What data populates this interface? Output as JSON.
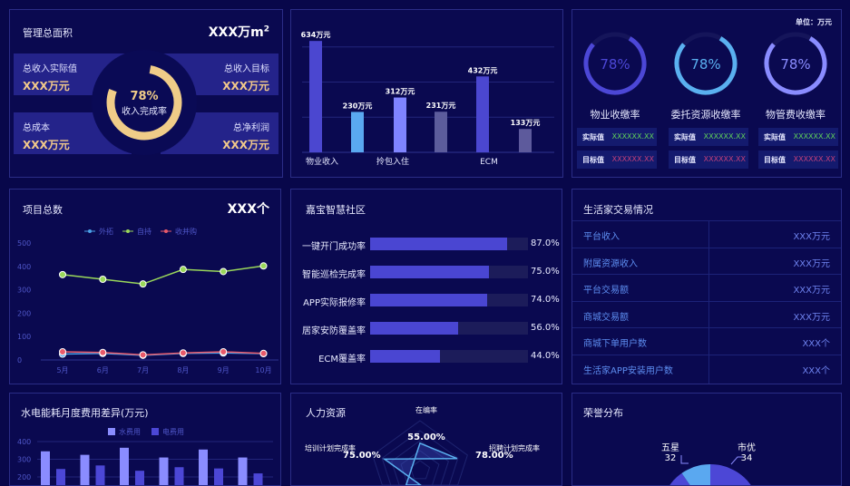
{
  "area": {
    "title": "管理总面积",
    "value": "XXX万m",
    "value_sup": "2",
    "cards": [
      {
        "label": "总收入实际值",
        "value": "XXX万元"
      },
      {
        "label": "总收入目标",
        "value": "XXX万元"
      },
      {
        "label": "总成本",
        "value": "XXX万元"
      },
      {
        "label": "总净利润",
        "value": "XXX万元"
      }
    ],
    "donut": {
      "percent": 78,
      "percent_label": "78%",
      "label": "收入完成率",
      "color": "#f0cc88"
    }
  },
  "income_chart": {
    "type": "bar",
    "categories": [
      "物业收入",
      "拎包入住",
      "ECM"
    ],
    "values": [
      634,
      230,
      312,
      231,
      432,
      133
    ],
    "data_labels": [
      "634万元",
      "230万元",
      "312万元",
      "231万元",
      "432万元",
      "133万元"
    ],
    "colors": [
      "#4b47d0",
      "#5aa8f0",
      "#7f84ff",
      "#5c5c9c",
      "#4b47d0",
      "#5d5a9c"
    ],
    "ylim": [
      0,
      640
    ]
  },
  "collection": {
    "unit": "单位：万元",
    "items": [
      {
        "percent": 78,
        "percent_label": "78%",
        "name": "物业收缴率",
        "color": "#4c47d6",
        "actual_label": "实际值",
        "actual": "XXXXXX.XX",
        "target_label": "目标值",
        "target": "XXXXXX.XX"
      },
      {
        "percent": 78,
        "percent_label": "78%",
        "name": "委托资源收缴率",
        "color": "#5ab0f0",
        "actual_label": "实际值",
        "actual": "XXXXXX.XX",
        "target_label": "目标值",
        "target": "XXXXXX.XX"
      },
      {
        "percent": 78,
        "percent_label": "78%",
        "name": "物管费收缴率",
        "color": "#8a8cff",
        "actual_label": "实际值",
        "actual": "XXXXXX.XX",
        "target_label": "目标值",
        "target": "XXXXXX.XX"
      }
    ],
    "actual_color": "#5fd05a",
    "target_color": "#c0407a"
  },
  "projects": {
    "title": "项目总数",
    "value": "XXX个"
  },
  "chart_data": [
    {
      "type": "line",
      "x": [
        "5月",
        "6月",
        "7月",
        "8月",
        "9月",
        "10月"
      ],
      "ylim": [
        0,
        500
      ],
      "yticks": [
        "0",
        "100",
        "200",
        "300",
        "400",
        "500"
      ],
      "legend": "top",
      "series": [
        {
          "name": "外拓",
          "color": "#4aa0e8",
          "values": [
            25,
            28,
            20,
            28,
            30,
            27
          ]
        },
        {
          "name": "自持",
          "color": "#9ad85a",
          "values": [
            365,
            345,
            325,
            387,
            378,
            402
          ]
        },
        {
          "name": "收并购",
          "color": "#e85a6a",
          "values": [
            35,
            32,
            22,
            30,
            35,
            28
          ]
        }
      ]
    },
    {
      "type": "bar",
      "title": "水电能耗月度费用差异(万元)",
      "ylim": [
        0,
        400
      ],
      "yticks": [
        "200",
        "300",
        "400"
      ],
      "legend": "top",
      "series": [
        {
          "name": "水费用",
          "color": "#8a8cff",
          "values": [
            345,
            325,
            365,
            310,
            355,
            310
          ]
        },
        {
          "name": "电费用",
          "color": "#4c47d6",
          "values": [
            245,
            265,
            235,
            255,
            248,
            220
          ]
        }
      ]
    }
  ],
  "community": {
    "title": "嘉宝智慧社区",
    "items": [
      {
        "label": "一键开门成功率",
        "value": 87,
        "value_label": "87.0%"
      },
      {
        "label": "智能巡检完成率",
        "value": 75,
        "value_label": "75.0%"
      },
      {
        "label": "APP实际报修率",
        "value": 74,
        "value_label": "74.0%"
      },
      {
        "label": "居家安防覆盖率",
        "value": 56,
        "value_label": "56.0%"
      },
      {
        "label": "ECM覆盖率",
        "value": 44,
        "value_label": "44.0%"
      }
    ]
  },
  "trade": {
    "title": "生活家交易情况",
    "rows": [
      {
        "k": "平台收入",
        "v": "XXX万元"
      },
      {
        "k": "附属资源收入",
        "v": "XXX万元"
      },
      {
        "k": "平台交易额",
        "v": "XXX万元"
      },
      {
        "k": "商城交易额",
        "v": "XXX万元"
      },
      {
        "k": "商城下单用户数",
        "v": "XXX个"
      },
      {
        "k": "生活家APP安装用户数",
        "v": "XXX个"
      }
    ]
  },
  "hr": {
    "title": "人力资源",
    "axes": [
      {
        "name": "在编率",
        "value": 55,
        "label": "55.00%"
      },
      {
        "name": "招聘计划完成率",
        "value": 78,
        "label": "78.00%"
      },
      {
        "name": "培训计划完成率",
        "value": 75,
        "label": "75.00%"
      }
    ]
  },
  "honor": {
    "title": "荣誉分布",
    "slices": [
      {
        "name": "五星",
        "value": 32,
        "color": "#5aa8f0"
      },
      {
        "name": "市优",
        "value": 34,
        "color": "#4c47d6"
      }
    ]
  }
}
